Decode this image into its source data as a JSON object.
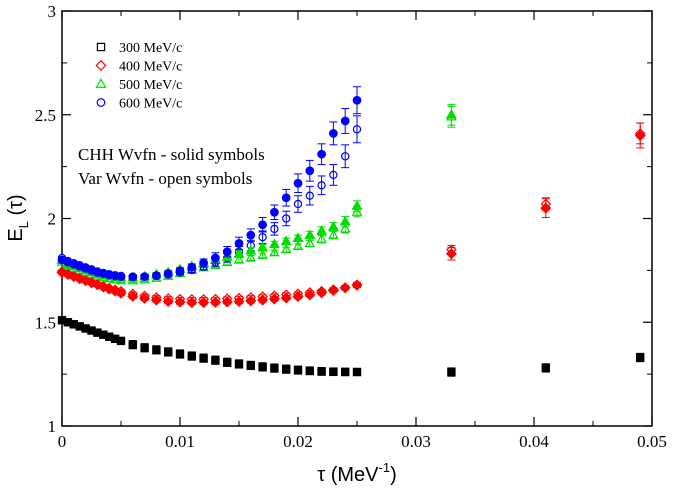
{
  "chart_data": {
    "type": "scatter",
    "xlabel": "τ (MeV",
    "xlabel_sup": "-1",
    "xlabel_close": ")",
    "ylabel": "E",
    "ylabel_sub": "L",
    "ylabel_tail": " (τ)",
    "xlim": [
      0,
      0.05
    ],
    "ylim": [
      1,
      3
    ],
    "x_ticks": [
      0,
      0.01,
      0.02,
      0.03,
      0.04,
      0.05
    ],
    "x_tick_labels": [
      "0",
      "0.01",
      "0.02",
      "0.03",
      "0.04",
      "0.05"
    ],
    "y_ticks": [
      1,
      1.5,
      2,
      2.5,
      3
    ],
    "y_tick_labels": [
      "1",
      "1.5",
      "2",
      "2.5",
      "3"
    ],
    "legend_position": "top-left",
    "annotations": [
      "CHH Wvfn - solid symbols",
      "Var Wvfn - open symbols"
    ],
    "series": [
      {
        "name": "300 MeV/c",
        "momentum": 300,
        "marker": "square",
        "color": "#000000",
        "variant": "CHH",
        "fill": "solid",
        "x": [
          0,
          0.0005,
          0.001,
          0.0015,
          0.002,
          0.0025,
          0.003,
          0.0035,
          0.004,
          0.0045,
          0.005,
          0.006,
          0.007,
          0.008,
          0.009,
          0.01,
          0.011,
          0.012,
          0.013,
          0.014,
          0.015,
          0.016,
          0.017,
          0.018,
          0.019,
          0.02,
          0.021,
          0.022,
          0.023,
          0.024,
          0.025,
          0.033,
          0.041,
          0.049
        ],
        "y": [
          1.51,
          1.5,
          1.49,
          1.48,
          1.47,
          1.46,
          1.45,
          1.44,
          1.43,
          1.42,
          1.41,
          1.39,
          1.375,
          1.365,
          1.355,
          1.345,
          1.335,
          1.325,
          1.315,
          1.305,
          1.297,
          1.29,
          1.283,
          1.277,
          1.272,
          1.268,
          1.265,
          1.262,
          1.261,
          1.26,
          1.26,
          1.26,
          1.28,
          1.33
        ],
        "err": [
          0.008,
          0.008,
          0.008,
          0.008,
          0.008,
          0.008,
          0.008,
          0.008,
          0.008,
          0.008,
          0.01,
          0.01,
          0.01,
          0.01,
          0.01,
          0.01,
          0.01,
          0.01,
          0.01,
          0.01,
          0.01,
          0.01,
          0.01,
          0.01,
          0.01,
          0.01,
          0.01,
          0.01,
          0.01,
          0.01,
          0.012,
          0.02,
          0.02,
          0.02
        ]
      },
      {
        "name": "300 MeV/c",
        "momentum": 300,
        "marker": "square",
        "color": "#000000",
        "variant": "Var",
        "fill": "open",
        "x": [
          0,
          0.0005,
          0.001,
          0.0015,
          0.002,
          0.0025,
          0.003,
          0.0035,
          0.004,
          0.0045,
          0.005,
          0.006,
          0.007,
          0.008,
          0.009,
          0.01,
          0.011,
          0.012,
          0.013,
          0.014,
          0.015,
          0.016,
          0.017,
          0.018,
          0.019,
          0.02,
          0.021,
          0.022,
          0.023,
          0.024,
          0.025
        ],
        "y": [
          1.51,
          1.5,
          1.49,
          1.48,
          1.47,
          1.46,
          1.45,
          1.44,
          1.43,
          1.42,
          1.41,
          1.395,
          1.38,
          1.37,
          1.36,
          1.35,
          1.34,
          1.33,
          1.32,
          1.31,
          1.302,
          1.295,
          1.288,
          1.282,
          1.277,
          1.272,
          1.268,
          1.265,
          1.263,
          1.262,
          1.261
        ],
        "err": [
          0.006,
          0.006,
          0.006,
          0.006,
          0.006,
          0.006,
          0.006,
          0.006,
          0.006,
          0.006,
          0.008,
          0.008,
          0.008,
          0.008,
          0.008,
          0.008,
          0.008,
          0.008,
          0.008,
          0.008,
          0.008,
          0.008,
          0.008,
          0.008,
          0.008,
          0.008,
          0.008,
          0.008,
          0.008,
          0.008,
          0.01
        ]
      },
      {
        "name": "400 MeV/c",
        "momentum": 400,
        "marker": "diamond",
        "color": "#ff0000",
        "variant": "CHH",
        "fill": "solid",
        "x": [
          0,
          0.0005,
          0.001,
          0.0015,
          0.002,
          0.0025,
          0.003,
          0.0035,
          0.004,
          0.0045,
          0.005,
          0.006,
          0.007,
          0.008,
          0.009,
          0.01,
          0.011,
          0.012,
          0.013,
          0.014,
          0.015,
          0.016,
          0.017,
          0.018,
          0.019,
          0.02,
          0.021,
          0.022,
          0.023,
          0.024,
          0.025,
          0.033,
          0.041,
          0.049
        ],
        "y": [
          1.74,
          1.73,
          1.72,
          1.71,
          1.7,
          1.69,
          1.68,
          1.67,
          1.66,
          1.65,
          1.64,
          1.625,
          1.615,
          1.607,
          1.6,
          1.597,
          1.595,
          1.595,
          1.596,
          1.598,
          1.6,
          1.603,
          1.607,
          1.612,
          1.617,
          1.624,
          1.632,
          1.642,
          1.653,
          1.666,
          1.68,
          1.83,
          2.05,
          2.4
        ],
        "err": [
          0.008,
          0.008,
          0.008,
          0.008,
          0.008,
          0.008,
          0.008,
          0.008,
          0.008,
          0.008,
          0.01,
          0.01,
          0.01,
          0.01,
          0.01,
          0.01,
          0.01,
          0.01,
          0.01,
          0.01,
          0.01,
          0.01,
          0.01,
          0.01,
          0.01,
          0.01,
          0.01,
          0.01,
          0.01,
          0.01,
          0.012,
          0.03,
          0.045,
          0.06
        ]
      },
      {
        "name": "400 MeV/c",
        "momentum": 400,
        "marker": "diamond",
        "color": "#ff0000",
        "variant": "Var",
        "fill": "open",
        "x": [
          0,
          0.0005,
          0.001,
          0.0015,
          0.002,
          0.0025,
          0.003,
          0.0035,
          0.004,
          0.0045,
          0.005,
          0.006,
          0.007,
          0.008,
          0.009,
          0.01,
          0.011,
          0.012,
          0.013,
          0.014,
          0.015,
          0.016,
          0.017,
          0.018,
          0.019,
          0.02,
          0.021,
          0.022,
          0.023,
          0.024,
          0.025,
          0.033,
          0.041,
          0.049
        ],
        "y": [
          1.745,
          1.735,
          1.725,
          1.715,
          1.705,
          1.695,
          1.685,
          1.675,
          1.665,
          1.657,
          1.65,
          1.637,
          1.627,
          1.62,
          1.615,
          1.612,
          1.611,
          1.611,
          1.612,
          1.614,
          1.617,
          1.62,
          1.624,
          1.628,
          1.633,
          1.638,
          1.644,
          1.65,
          1.658,
          1.667,
          1.677,
          1.85,
          2.07,
          2.41
        ],
        "err": [
          0.006,
          0.006,
          0.006,
          0.006,
          0.006,
          0.006,
          0.006,
          0.006,
          0.006,
          0.006,
          0.008,
          0.008,
          0.008,
          0.008,
          0.008,
          0.008,
          0.008,
          0.008,
          0.008,
          0.008,
          0.008,
          0.008,
          0.008,
          0.008,
          0.008,
          0.008,
          0.008,
          0.008,
          0.008,
          0.008,
          0.01,
          0.02,
          0.03,
          0.05
        ]
      },
      {
        "name": "500 MeV/c",
        "momentum": 500,
        "marker": "triangle",
        "color": "#00dd00",
        "variant": "CHH",
        "fill": "solid",
        "x": [
          0,
          0.0005,
          0.001,
          0.0015,
          0.002,
          0.0025,
          0.003,
          0.0035,
          0.004,
          0.0045,
          0.005,
          0.006,
          0.007,
          0.008,
          0.009,
          0.01,
          0.011,
          0.012,
          0.013,
          0.014,
          0.015,
          0.016,
          0.017,
          0.018,
          0.019,
          0.02,
          0.021,
          0.022,
          0.023,
          0.024,
          0.025,
          0.033
        ],
        "y": [
          1.8,
          1.78,
          1.77,
          1.76,
          1.75,
          1.74,
          1.735,
          1.73,
          1.725,
          1.72,
          1.715,
          1.715,
          1.72,
          1.73,
          1.74,
          1.755,
          1.77,
          1.785,
          1.8,
          1.815,
          1.83,
          1.845,
          1.86,
          1.875,
          1.89,
          1.905,
          1.92,
          1.94,
          1.96,
          1.985,
          2.06,
          2.5
        ],
        "err": [
          0.008,
          0.008,
          0.008,
          0.008,
          0.008,
          0.008,
          0.008,
          0.008,
          0.008,
          0.008,
          0.01,
          0.01,
          0.01,
          0.01,
          0.01,
          0.01,
          0.012,
          0.012,
          0.012,
          0.015,
          0.015,
          0.015,
          0.015,
          0.015,
          0.015,
          0.015,
          0.018,
          0.02,
          0.02,
          0.025,
          0.025,
          0.05
        ]
      },
      {
        "name": "500 MeV/c",
        "momentum": 500,
        "marker": "triangle",
        "color": "#00dd00",
        "variant": "Var",
        "fill": "open",
        "x": [
          0,
          0.0005,
          0.001,
          0.0015,
          0.002,
          0.0025,
          0.003,
          0.0035,
          0.004,
          0.0045,
          0.005,
          0.006,
          0.007,
          0.008,
          0.009,
          0.01,
          0.011,
          0.012,
          0.013,
          0.014,
          0.015,
          0.016,
          0.017,
          0.018,
          0.019,
          0.02,
          0.021,
          0.022,
          0.023,
          0.024,
          0.025,
          0.033
        ],
        "y": [
          1.79,
          1.775,
          1.76,
          1.75,
          1.74,
          1.73,
          1.722,
          1.715,
          1.71,
          1.705,
          1.7,
          1.7,
          1.705,
          1.712,
          1.722,
          1.735,
          1.75,
          1.763,
          1.775,
          1.788,
          1.8,
          1.81,
          1.822,
          1.835,
          1.85,
          1.865,
          1.88,
          1.9,
          1.92,
          1.95,
          2.03,
          2.49
        ],
        "err": [
          0.006,
          0.006,
          0.006,
          0.006,
          0.006,
          0.006,
          0.006,
          0.006,
          0.006,
          0.006,
          0.008,
          0.008,
          0.008,
          0.008,
          0.008,
          0.008,
          0.01,
          0.01,
          0.01,
          0.012,
          0.012,
          0.012,
          0.012,
          0.012,
          0.012,
          0.012,
          0.015,
          0.018,
          0.018,
          0.02,
          0.022,
          0.05
        ]
      },
      {
        "name": "600 MeV/c",
        "momentum": 600,
        "marker": "circle",
        "color": "#0000ff",
        "variant": "CHH",
        "fill": "solid",
        "x": [
          0,
          0.0005,
          0.001,
          0.0015,
          0.002,
          0.0025,
          0.003,
          0.0035,
          0.004,
          0.0045,
          0.005,
          0.006,
          0.007,
          0.008,
          0.009,
          0.01,
          0.011,
          0.012,
          0.013,
          0.014,
          0.015,
          0.016,
          0.017,
          0.018,
          0.019,
          0.02,
          0.021,
          0.022,
          0.023,
          0.024,
          0.025
        ],
        "y": [
          1.8,
          1.79,
          1.78,
          1.77,
          1.76,
          1.75,
          1.74,
          1.735,
          1.728,
          1.723,
          1.72,
          1.718,
          1.72,
          1.725,
          1.735,
          1.748,
          1.765,
          1.785,
          1.81,
          1.84,
          1.88,
          1.92,
          1.97,
          2.03,
          2.1,
          2.17,
          2.23,
          2.31,
          2.41,
          2.47,
          2.57
        ],
        "err": [
          0.008,
          0.008,
          0.008,
          0.008,
          0.008,
          0.008,
          0.008,
          0.008,
          0.008,
          0.008,
          0.01,
          0.01,
          0.01,
          0.01,
          0.01,
          0.012,
          0.015,
          0.02,
          0.025,
          0.025,
          0.03,
          0.03,
          0.035,
          0.035,
          0.04,
          0.045,
          0.05,
          0.05,
          0.055,
          0.06,
          0.065
        ]
      },
      {
        "name": "600 MeV/c",
        "momentum": 600,
        "marker": "circle",
        "color": "#0000ff",
        "variant": "Var",
        "fill": "open",
        "x": [
          0,
          0.0005,
          0.001,
          0.0015,
          0.002,
          0.0025,
          0.003,
          0.0035,
          0.004,
          0.0045,
          0.005,
          0.006,
          0.007,
          0.008,
          0.009,
          0.01,
          0.011,
          0.012,
          0.013,
          0.014,
          0.015,
          0.016,
          0.017,
          0.018,
          0.019,
          0.02,
          0.021,
          0.022,
          0.023,
          0.024,
          0.025
        ],
        "y": [
          1.81,
          1.795,
          1.785,
          1.775,
          1.765,
          1.755,
          1.745,
          1.738,
          1.732,
          1.727,
          1.723,
          1.72,
          1.72,
          1.723,
          1.73,
          1.74,
          1.752,
          1.768,
          1.79,
          1.81,
          1.84,
          1.87,
          1.91,
          1.95,
          2.0,
          2.07,
          2.11,
          2.16,
          2.21,
          2.3,
          2.43
        ],
        "err": [
          0.006,
          0.006,
          0.006,
          0.006,
          0.006,
          0.006,
          0.006,
          0.006,
          0.006,
          0.006,
          0.008,
          0.008,
          0.008,
          0.008,
          0.008,
          0.01,
          0.012,
          0.015,
          0.02,
          0.02,
          0.025,
          0.025,
          0.03,
          0.03,
          0.035,
          0.04,
          0.045,
          0.045,
          0.05,
          0.055,
          0.065
        ]
      }
    ]
  }
}
